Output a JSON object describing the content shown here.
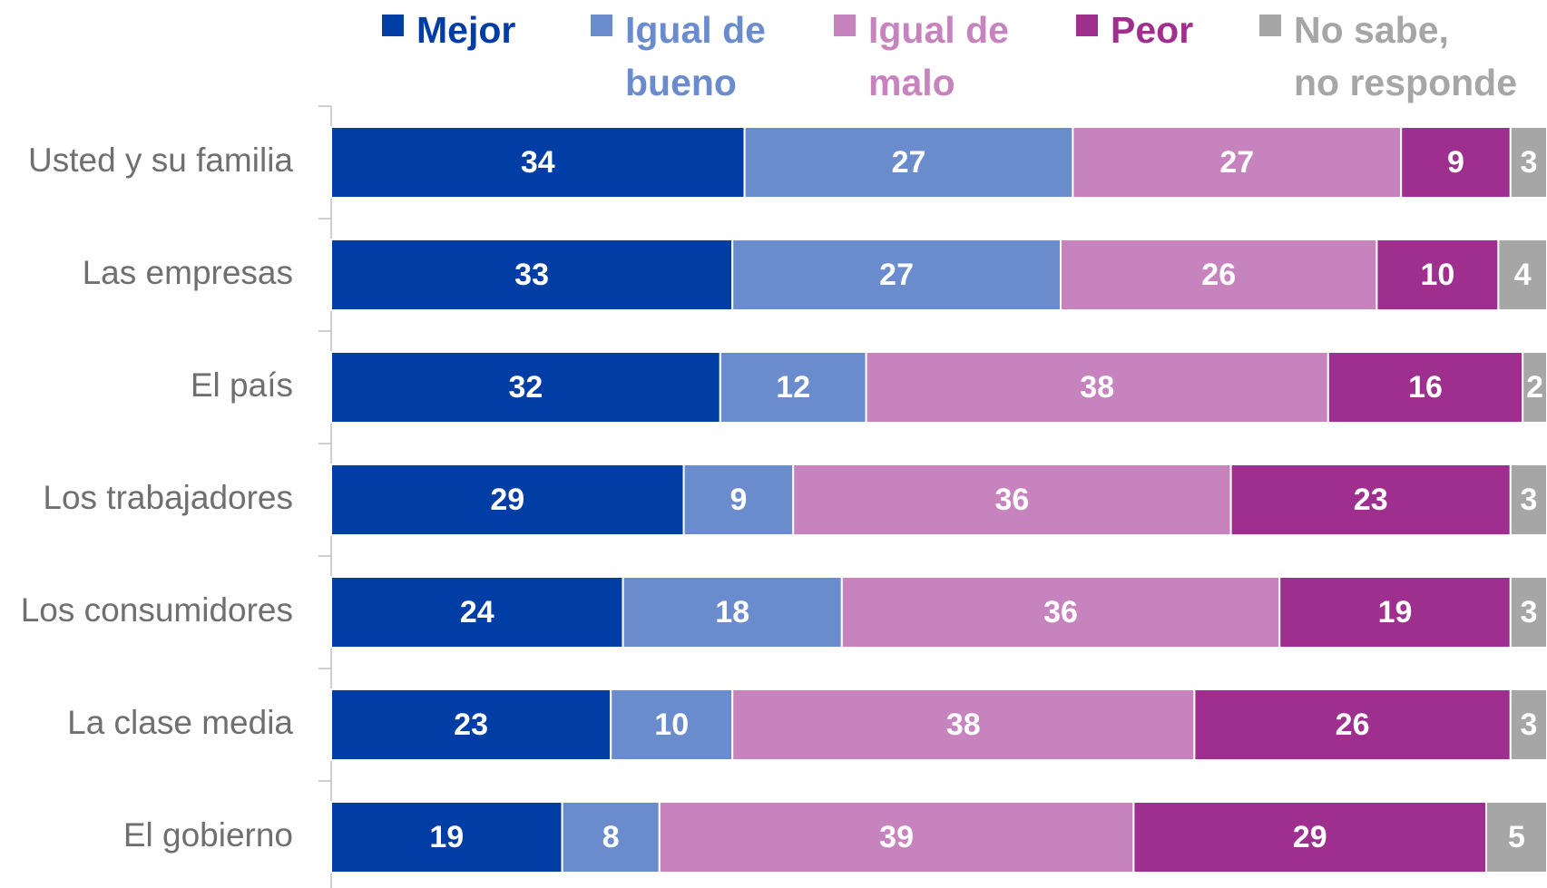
{
  "chart_data": {
    "type": "stacked-bar-horizontal",
    "categories": [
      "Usted y su familia",
      "Las empresas",
      "El país",
      "Los trabajadores",
      "Los consumidores",
      "La clase media",
      "El gobierno"
    ],
    "series": [
      {
        "name": "Mejor",
        "color": "#003da5",
        "values": [
          34,
          33,
          32,
          29,
          24,
          23,
          19
        ]
      },
      {
        "name": "Igual de bueno",
        "color": "#6a8ccc",
        "values": [
          27,
          27,
          12,
          9,
          18,
          10,
          8
        ]
      },
      {
        "name": "Igual de malo",
        "color": "#c783be",
        "values": [
          27,
          26,
          38,
          36,
          36,
          38,
          39
        ]
      },
      {
        "name": "Peor",
        "color": "#9e2f8f",
        "values": [
          9,
          10,
          16,
          23,
          19,
          26,
          29
        ]
      },
      {
        "name": "No sabe, no responde",
        "color": "#a6a6a6",
        "values": [
          3,
          4,
          2,
          3,
          3,
          3,
          5
        ]
      }
    ],
    "xlim": [
      0,
      100
    ]
  }
}
